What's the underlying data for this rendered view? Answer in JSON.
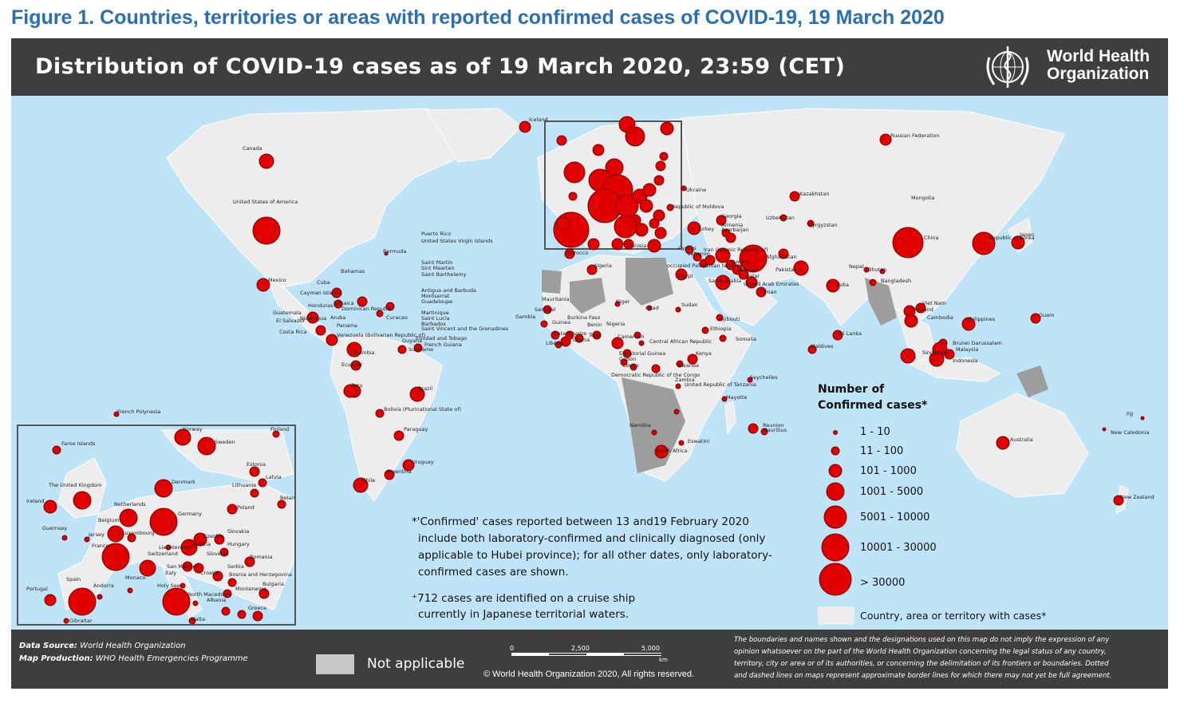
{
  "figure_title": "Figure 1. Countries, territories or areas with reported confirmed cases of COVID-19, 19 March 2020",
  "header": {
    "title": "Distribution of COVID-19  cases as of 19 March 2020, 23:59 (CET)",
    "org_line1": "World Health",
    "org_line2": "Organization"
  },
  "legend": {
    "title_line1": "Number of",
    "title_line2": "Confirmed cases*",
    "classes": [
      "1 - 10",
      "11 - 100",
      "101 - 1000",
      "1001 - 5000",
      "5001 - 10000",
      "10001 - 30000",
      "> 30000"
    ],
    "country_label": "Country, area or territory with cases*",
    "bubble_color": "#e00000",
    "country_color": "#ededed",
    "not_applicable_color": "#c8c8c8"
  },
  "caption": {
    "line1": "*'Confirmed' cases reported between 13 and19 February 2020",
    "line2": "include both laboratory-confirmed and clinically diagnosed (only",
    "line3": "applicable to Hubei province); for all other dates, only laboratory-",
    "line4": "confirmed cases are shown.",
    "cruise1": "⁺712 cases are identified on a cruise ship",
    "cruise2": "currently in Japanese territorial waters."
  },
  "footer": {
    "data_source_label": "Data Source:",
    "data_source": "World Health Organization",
    "map_production_label": "Map Production:",
    "map_production": "WHO Health Emergencies Programme",
    "not_applicable": "Not applicable",
    "scale_0": "0",
    "scale_1": "2,500",
    "scale_2": "5,000",
    "scale_unit": "km",
    "copyright": "© World Health Organization  2020,  All rights reserved.",
    "disclaimer_1": "The boundaries and names shown and the designations used on this map do not imply the expression of any",
    "disclaimer_2": "opinion whatsoever on the part of the World Health Organization concerning the legal status of any country,",
    "disclaimer_3": "territory, city or area or of its authorities, or concerning the delimitation of its frontiers or boundaries. Dotted",
    "disclaimer_4": "and dashed lines on maps represent approximate border lines for which there may not yet be full agreement."
  },
  "map_labels": [
    "Canada",
    "United States of America",
    "Mexico",
    "Cuba",
    "Bahamas",
    "Bermuda",
    "Puerto Rico",
    "United States Virgin Islands",
    "Saint Martin",
    "Sint Maarten",
    "Saint Barthelemy",
    "Antigua and Barbuda",
    "Montserrat",
    "Guadeloupe",
    "Martinique",
    "Saint Lucia",
    "Barbados",
    "Saint Vincent and the Grenadines",
    "Trinidad and Tobago",
    "French Guiana",
    "Guyana",
    "Suriname",
    "Cayman Islands",
    "Honduras",
    "Jamaica",
    "Dominican Republic",
    "Aruba",
    "Curacao",
    "Guatemala",
    "El Salvador",
    "Nicaragua",
    "Costa Rica",
    "Panama",
    "Venezuela (Bolivarian Republic of)",
    "Colombia",
    "Ecuador",
    "Peru",
    "Brazil",
    "Bolivia (Plurinational State of)",
    "Paraguay",
    "Uruguay",
    "Argentina",
    "Chile",
    "French Polynesia",
    "Iceland",
    "Morocco",
    "Algeria",
    "Mauritania",
    "Senegal",
    "Gambia",
    "Guinea",
    "Burkina Faso",
    "Cote d'Ivoire",
    "Liberia",
    "Ghana",
    "Togo",
    "Benin",
    "Nigeria",
    "Niger",
    "Chad",
    "Sudan",
    "Cameroon",
    "Central African Republic",
    "Equatorial Guinea",
    "Gabon",
    "Congo",
    "Democratic Republic of the Congo",
    "Rwanda",
    "Kenya",
    "Ethiopia",
    "Djibouti",
    "Somalia",
    "United Republic of Tanzania",
    "Seychelles",
    "Zambia",
    "Namibia",
    "South Africa",
    "Eswatini",
    "Mayotte",
    "Reunion",
    "Mauritius",
    "Egypt",
    "Tunisia",
    "Ukraine",
    "Republic of Moldova",
    "Georgia",
    "Armenia",
    "Azerbaijan",
    "Turkey",
    "Cyprus",
    "Lebanon",
    "occupied Palestinian territory",
    "Iran (Islamic Republic of)",
    "Kuwait",
    "Bahrain",
    "Qatar",
    "Saudi Arabia",
    "United Arab Emirates",
    "Oman",
    "Afghanistan",
    "Pakistan",
    "Uzbekistan",
    "Kazakhstan",
    "Kyrgyzstan",
    "Russian Federation",
    "Mongolia",
    "China",
    "Republic of Korea",
    "Japan",
    "Nepal",
    "Bhutan",
    "Bangladesh",
    "India",
    "Sri Lanka",
    "Maldives",
    "Thailand",
    "Viet Nam",
    "Cambodia",
    "Philippines",
    "Guam",
    "Brunei Darussalam",
    "Malaysia",
    "Singapore",
    "Indonesia",
    "Australia",
    "New Caledonia",
    "Fiji",
    "New Zealand"
  ],
  "inset_labels": [
    "Norway",
    "Finland",
    "Faroe Islands",
    "Sweden",
    "Estonia",
    "Latvia",
    "Lithuania",
    "Belarus",
    "Ireland",
    "The United Kingdom",
    "Denmark",
    "Netherlands",
    "Poland",
    "Germany",
    "Belgium",
    "Guernsey",
    "Jersey",
    "Luxembourg",
    "Czechia",
    "Slovakia",
    "France",
    "Liechtenstein",
    "Austria",
    "Hungary",
    "Switzerland",
    "Slovenia",
    "Croatia",
    "Romania",
    "Serbia",
    "San Marino",
    "Bosnia and Herzegovina",
    "Monaco",
    "Andorra",
    "Italy",
    "Holy See",
    "Montenegro",
    "Bulgaria",
    "North Macedonia",
    "Albania",
    "Greece",
    "Spain",
    "Portugal",
    "Gibraltar",
    "Malta"
  ]
}
